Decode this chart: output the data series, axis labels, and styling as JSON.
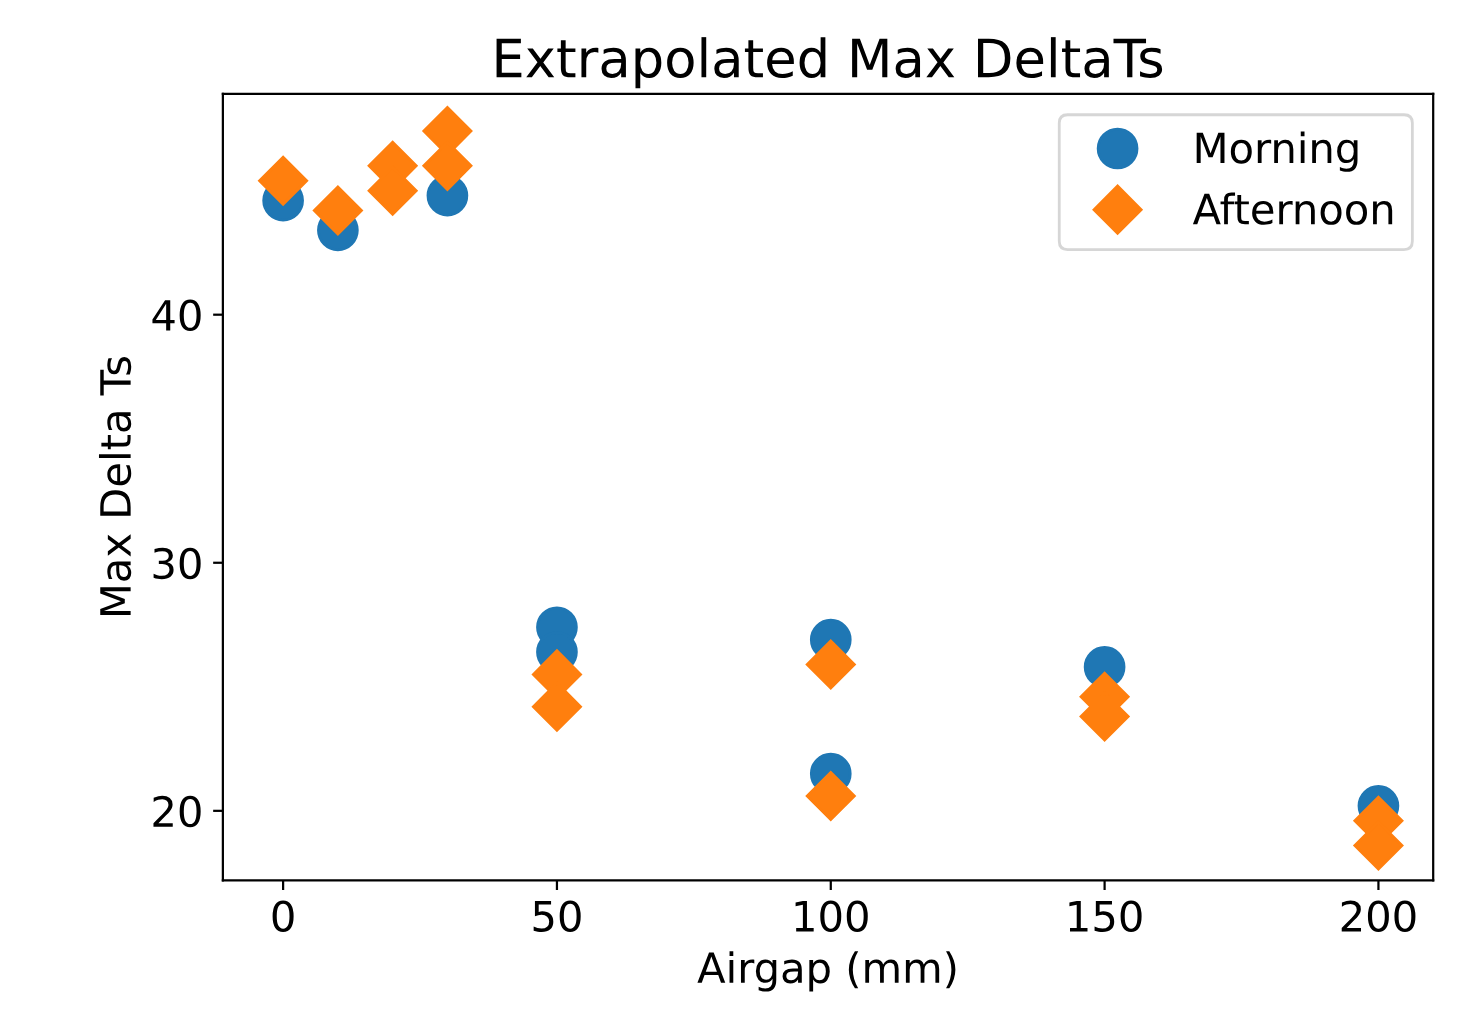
{
  "chart_data": {
    "type": "scatter",
    "title": "Extrapolated Max DeltaTs",
    "xlabel": "Airgap (mm)",
    "ylabel": "Max Delta Ts",
    "xlim": [
      -11,
      210
    ],
    "ylim": [
      17.2,
      48.9
    ],
    "xticks": [
      0,
      50,
      100,
      150,
      200
    ],
    "yticks": [
      20,
      30,
      40
    ],
    "grid": false,
    "legend": "top right",
    "series": [
      {
        "name": "Morning",
        "color": "#1f77b4",
        "marker": "circle",
        "x": [
          0,
          10,
          30,
          50,
          50,
          100,
          100,
          150,
          200
        ],
        "values": [
          44.6,
          43.4,
          44.8,
          27.4,
          26.4,
          26.9,
          21.5,
          25.8,
          20.2
        ]
      },
      {
        "name": "Afternoon",
        "color": "#ff7f0e",
        "marker": "diamond",
        "x": [
          0,
          10,
          20,
          20,
          30,
          30,
          50,
          50,
          100,
          100,
          150,
          150,
          200,
          200
        ],
        "values": [
          45.4,
          44.2,
          46.0,
          45.0,
          47.4,
          46.0,
          25.5,
          24.2,
          25.9,
          20.6,
          24.6,
          23.8,
          19.6,
          18.6
        ]
      }
    ]
  }
}
